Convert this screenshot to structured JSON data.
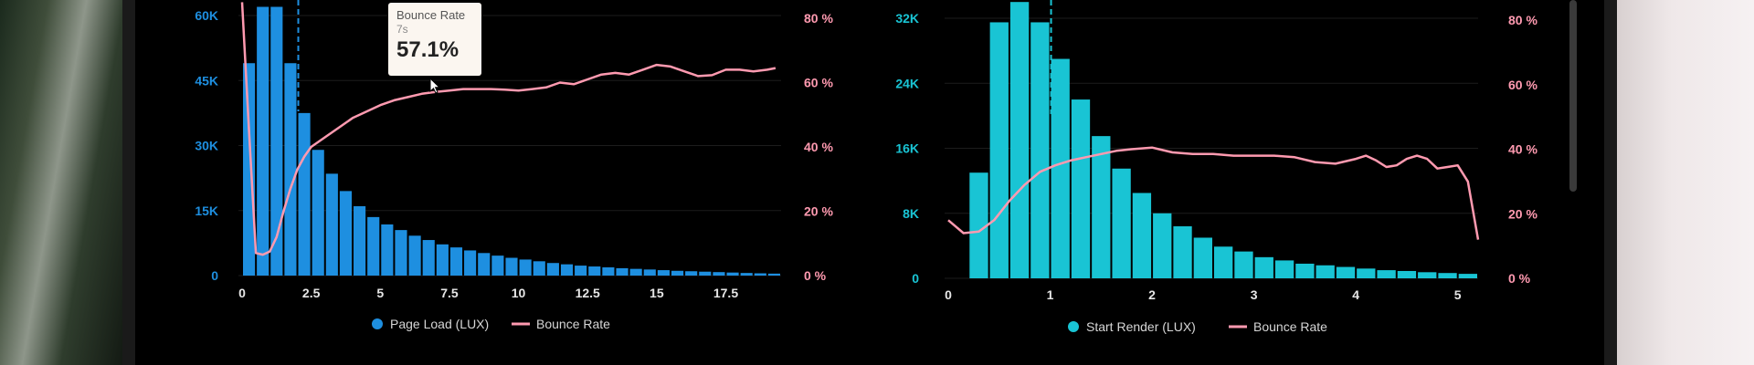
{
  "chart_data": [
    {
      "type": "bar",
      "title": "",
      "xlabel": "",
      "ylabel": "",
      "x_ticks": [
        "0",
        "2.5",
        "5",
        "7.5",
        "10",
        "12.5",
        "15",
        "17.5"
      ],
      "x_tick_values": [
        0,
        2.5,
        5,
        7.5,
        10,
        12.5,
        15,
        17.5
      ],
      "xlim": [
        0,
        19.5
      ],
      "y_left_ticks": [
        "0",
        "15K",
        "30K",
        "45K",
        "60K"
      ],
      "y_left_values": [
        0,
        15000,
        30000,
        45000,
        60000
      ],
      "ylim_left": [
        0,
        60000
      ],
      "y_right_ticks": [
        "0 %",
        "20 %",
        "40 %",
        "60 %",
        "80 %"
      ],
      "y_right_values": [
        0,
        20,
        40,
        60,
        80
      ],
      "ylim_right": [
        0,
        80
      ],
      "bar_width": 0.5,
      "bars": {
        "name": "Page Load (LUX)",
        "color": "#1e8fe0",
        "x": [
          0,
          0.5,
          1,
          1.5,
          2,
          2.5,
          3,
          3.5,
          4,
          4.5,
          5,
          5.5,
          6,
          6.5,
          7,
          7.5,
          8,
          8.5,
          9,
          9.5,
          10,
          10.5,
          11,
          11.5,
          12,
          12.5,
          13,
          13.5,
          14,
          14.5,
          15,
          15.5,
          16,
          16.5,
          17,
          17.5,
          18,
          18.5,
          19
        ],
        "values": [
          49000,
          62000,
          62000,
          49000,
          37500,
          29000,
          23500,
          19500,
          16000,
          13500,
          11800,
          10500,
          9200,
          8200,
          7200,
          6500,
          5800,
          5200,
          4600,
          4100,
          3700,
          3300,
          2900,
          2600,
          2300,
          2100,
          1900,
          1700,
          1550,
          1400,
          1250,
          1100,
          1000,
          900,
          800,
          700,
          600,
          520,
          450
        ]
      },
      "line": {
        "name": "Bounce Rate",
        "color": "#ff9ab0",
        "x": [
          0,
          0.25,
          0.5,
          0.75,
          1,
          1.25,
          1.5,
          1.75,
          2,
          2.25,
          2.5,
          3,
          3.5,
          4,
          4.5,
          5,
          5.5,
          6,
          6.5,
          7,
          7.5,
          8,
          8.5,
          9,
          9.5,
          10,
          10.5,
          11,
          11.5,
          12,
          12.5,
          13,
          13.5,
          14,
          14.5,
          15,
          15.5,
          16,
          16.5,
          17,
          17.5,
          18,
          18.5,
          19,
          19.3
        ],
        "values": [
          85,
          45,
          7,
          6.5,
          7.5,
          12,
          20,
          27,
          33,
          37,
          40,
          43,
          46,
          49,
          51,
          53,
          54.5,
          55.5,
          56.5,
          57.1,
          57.5,
          58,
          58,
          58,
          57.8,
          57.5,
          58,
          58.5,
          60,
          59.5,
          61,
          62.5,
          63,
          62.5,
          64,
          65.5,
          65,
          63.5,
          62,
          62.3,
          64,
          64,
          63.5,
          64,
          64.5
        ]
      },
      "marker_x": 2.0,
      "legend_position": "bottom-center"
    },
    {
      "type": "bar",
      "title": "",
      "xlabel": "",
      "ylabel": "",
      "x_ticks": [
        "0",
        "1",
        "2",
        "3",
        "4",
        "5"
      ],
      "x_tick_values": [
        0,
        1,
        2,
        3,
        4,
        5
      ],
      "xlim": [
        0,
        5.2
      ],
      "y_left_ticks": [
        "0",
        "8K",
        "16K",
        "24K",
        "32K"
      ],
      "y_left_values": [
        0,
        8000,
        16000,
        24000,
        32000
      ],
      "ylim_left": [
        0,
        32000
      ],
      "y_right_ticks": [
        "0 %",
        "20 %",
        "40 %",
        "60 %",
        "80 %"
      ],
      "y_right_values": [
        0,
        20,
        40,
        60,
        80
      ],
      "ylim_right": [
        0,
        80
      ],
      "bar_width": 0.2,
      "bars": {
        "name": "Start Render (LUX)",
        "color": "#19c4d4",
        "x": [
          0.2,
          0.4,
          0.6,
          0.8,
          1.0,
          1.2,
          1.4,
          1.6,
          1.8,
          2.0,
          2.2,
          2.4,
          2.6,
          2.8,
          3.0,
          3.2,
          3.4,
          3.6,
          3.8,
          4.0,
          4.2,
          4.4,
          4.6,
          4.8,
          5.0
        ],
        "values": [
          13000,
          31500,
          34000,
          31500,
          27000,
          22000,
          17500,
          13500,
          10500,
          8000,
          6400,
          5000,
          3900,
          3300,
          2600,
          2200,
          1800,
          1600,
          1400,
          1200,
          1000,
          900,
          750,
          650,
          550
        ]
      },
      "line": {
        "name": "Bounce Rate",
        "color": "#ff9ab0",
        "x": [
          0,
          0.15,
          0.3,
          0.45,
          0.6,
          0.75,
          0.9,
          1.05,
          1.2,
          1.35,
          1.5,
          1.65,
          1.8,
          2.0,
          2.2,
          2.4,
          2.6,
          2.8,
          3.0,
          3.2,
          3.4,
          3.6,
          3.8,
          4.0,
          4.1,
          4.2,
          4.3,
          4.4,
          4.5,
          4.6,
          4.7,
          4.8,
          4.9,
          5.0,
          5.1,
          5.2
        ],
        "values": [
          18,
          14,
          14.5,
          18,
          24,
          29,
          33,
          35,
          36.5,
          37.5,
          38.5,
          39.5,
          40,
          40.5,
          39,
          38.5,
          38.5,
          38,
          38,
          38,
          37.5,
          36,
          35.5,
          37,
          38,
          36.5,
          34.5,
          35,
          37,
          38,
          37,
          34,
          34.5,
          35,
          30,
          12
        ]
      },
      "marker_x": 1.0,
      "legend_position": "bottom-center"
    }
  ],
  "tooltip": {
    "title": "Bounce Rate",
    "subtitle": "7s",
    "value": "57.1%"
  },
  "colors": {
    "left_axis_text": "#1e8fe0",
    "left2_axis_text": "#19c4d4",
    "right_axis_text": "#ff9ab0",
    "tick_text": "#e6e6e6",
    "grid": "#1c1c1c"
  }
}
